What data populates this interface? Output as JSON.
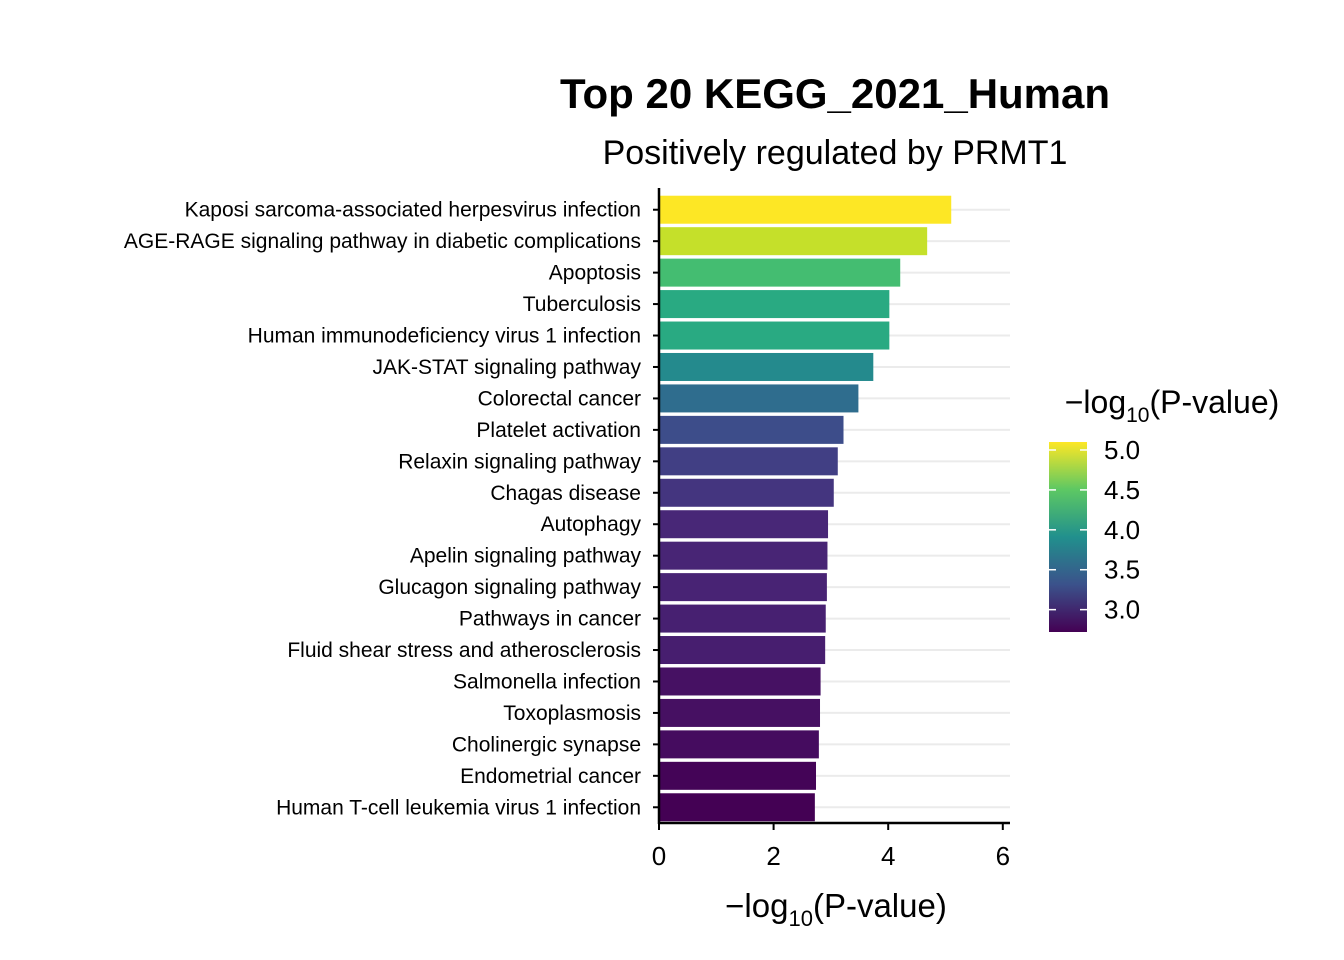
{
  "chart_data": {
    "type": "bar",
    "orientation": "horizontal",
    "title": "Top 20 KEGG_2021_Human",
    "subtitle": "Positively regulated by PRMT1",
    "xlabel": {
      "prefix": "−log",
      "sub": "10",
      "suffix": "(P-value)"
    },
    "ylabel": "",
    "xlim": [
      0,
      6.1
    ],
    "x_ticks": [
      0,
      2,
      4,
      6
    ],
    "grid": "horizontal-major",
    "categories": [
      "Kaposi sarcoma-associated herpesvirus infection",
      "AGE-RAGE signaling pathway in diabetic complications",
      "Apoptosis",
      "Tuberculosis",
      "Human immunodeficiency virus 1 infection",
      "JAK-STAT signaling pathway",
      "Colorectal cancer",
      "Platelet activation",
      "Relaxin signaling pathway",
      "Chagas disease",
      "Autophagy",
      "Apelin signaling pathway",
      "Glucagon signaling pathway",
      "Pathways in cancer",
      "Fluid shear stress and atherosclerosis",
      "Salmonella infection",
      "Toxoplasmosis",
      "Cholinergic synapse",
      "Endometrial cancer",
      "Human T-cell leukemia virus 1 infection"
    ],
    "values": [
      5.1,
      4.68,
      4.21,
      4.02,
      4.02,
      3.74,
      3.48,
      3.22,
      3.12,
      3.05,
      2.95,
      2.94,
      2.93,
      2.91,
      2.9,
      2.82,
      2.81,
      2.79,
      2.74,
      2.72
    ],
    "legend": {
      "title": {
        "prefix": "−log",
        "sub": "10",
        "suffix": "(P-value)"
      },
      "placement": "right",
      "ticks": [
        "5.0",
        "4.5",
        "4.0",
        "3.5",
        "3.0"
      ],
      "range": [
        2.72,
        5.1
      ],
      "colormap": "viridis"
    }
  }
}
